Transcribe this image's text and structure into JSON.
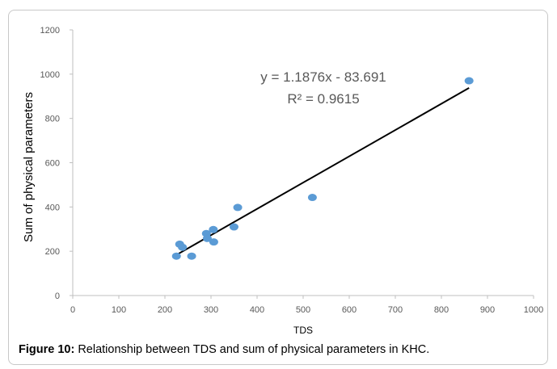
{
  "chart_data": {
    "type": "scatter",
    "xlabel": "TDS",
    "ylabel": "Sum of physical parameters",
    "xlim": [
      0,
      1000
    ],
    "ylim": [
      0,
      1200
    ],
    "xticks": [
      0,
      100,
      200,
      300,
      400,
      500,
      600,
      700,
      800,
      900,
      1000
    ],
    "yticks": [
      0,
      200,
      400,
      600,
      800,
      1000,
      1200
    ],
    "grid": false,
    "points": [
      {
        "x": 225,
        "y": 178
      },
      {
        "x": 232,
        "y": 232
      },
      {
        "x": 238,
        "y": 218
      },
      {
        "x": 258,
        "y": 178
      },
      {
        "x": 290,
        "y": 280
      },
      {
        "x": 292,
        "y": 258
      },
      {
        "x": 305,
        "y": 298
      },
      {
        "x": 306,
        "y": 242
      },
      {
        "x": 350,
        "y": 310
      },
      {
        "x": 358,
        "y": 398
      },
      {
        "x": 520,
        "y": 443
      },
      {
        "x": 860,
        "y": 970
      }
    ],
    "marker_color": "#5b9bd5",
    "trendline": {
      "slope": 1.1876,
      "intercept": -83.691,
      "x_range": [
        225,
        860
      ],
      "color": "#000000",
      "equation": "y = 1.1876x - 83.691",
      "r_squared": "R² = 0.9615"
    }
  },
  "caption": {
    "label": "Figure 10:",
    "text": " Relationship between TDS and sum of physical parameters in KHC."
  }
}
